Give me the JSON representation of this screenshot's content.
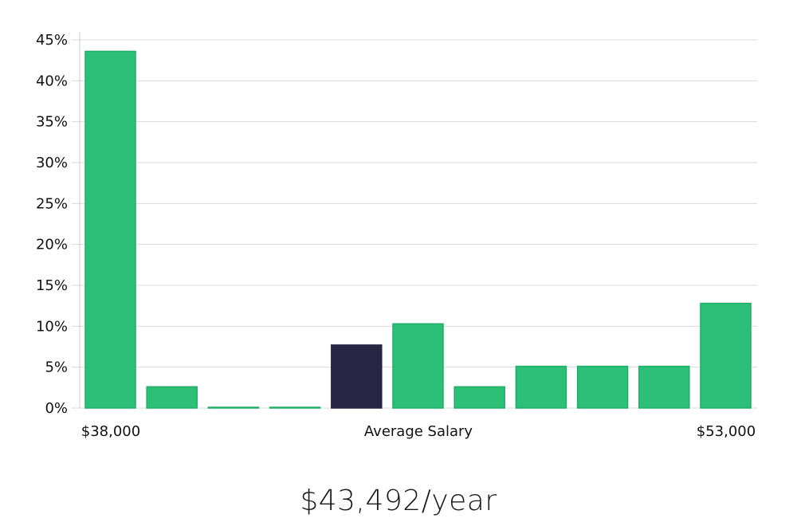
{
  "chart_data": {
    "type": "bar",
    "categories": [
      "1",
      "2",
      "3",
      "4",
      "5",
      "6",
      "7",
      "8",
      "9",
      "10",
      "11"
    ],
    "values": [
      43.6,
      2.6,
      0.1,
      0.1,
      7.7,
      10.3,
      2.6,
      5.1,
      5.1,
      5.1,
      12.8
    ],
    "highlight_index": 4,
    "colors": {
      "bar": "#2bbf78",
      "bar_edge": "#1fae68",
      "highlight": "#272645",
      "grid": "#d9d9d9",
      "axis": "#cccccc"
    },
    "ylim": [
      0,
      45
    ],
    "yticks": [
      {
        "value": 0,
        "label": "0%"
      },
      {
        "value": 5,
        "label": "5%"
      },
      {
        "value": 10,
        "label": "10%"
      },
      {
        "value": 15,
        "label": "15%"
      },
      {
        "value": 20,
        "label": "20%"
      },
      {
        "value": 25,
        "label": "25%"
      },
      {
        "value": 30,
        "label": "30%"
      },
      {
        "value": 35,
        "label": "35%"
      },
      {
        "value": 40,
        "label": "40%"
      },
      {
        "value": 45,
        "label": "45%"
      }
    ],
    "x_min_label": "$38,000",
    "x_center_label": "Average Salary",
    "x_max_label": "$53,000",
    "grid": true
  },
  "summary": {
    "average_salary": "$43,492/year"
  }
}
